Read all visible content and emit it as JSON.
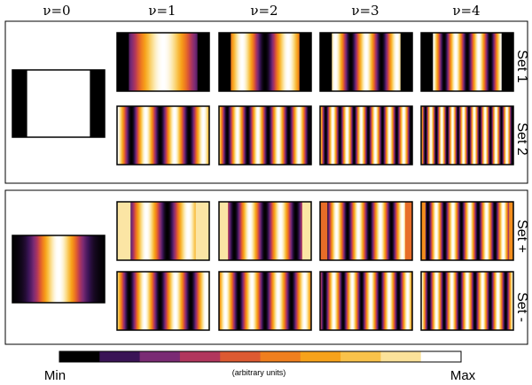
{
  "columns": [
    "ν=0",
    "ν=1",
    "ν=2",
    "ν=3",
    "ν=4"
  ],
  "panels": [
    {
      "rows": [
        "Set 1",
        "Set 2"
      ]
    },
    {
      "rows": [
        "Set +",
        "Set -"
      ]
    }
  ],
  "colorbar": {
    "min_label": "Min",
    "max_label": "Max",
    "unit_label": "(arbitrary units)",
    "colors": [
      "#000000",
      "#3a1456",
      "#7a2b74",
      "#b1365d",
      "#dd5a32",
      "#f07f1e",
      "#f7a21a",
      "#f9c24a",
      "#fbe29a",
      "#ffffff"
    ]
  },
  "tiles": [
    {
      "panel": 0,
      "row": 0,
      "col": 0,
      "kind": "binary",
      "mask": 0.16
    },
    {
      "panel": 0,
      "row": 0,
      "col": 1,
      "kind": "wave",
      "cycles": 1.0,
      "phase": 0.5,
      "mask": 0.13
    },
    {
      "panel": 0,
      "row": 0,
      "col": 2,
      "kind": "wave",
      "cycles": 2.0,
      "phase": 0.5,
      "mask": 0.13
    },
    {
      "panel": 0,
      "row": 0,
      "col": 3,
      "kind": "wave",
      "cycles": 3.0,
      "phase": 0.5,
      "mask": 0.13
    },
    {
      "panel": 0,
      "row": 0,
      "col": 4,
      "kind": "wave",
      "cycles": 4.0,
      "phase": 0.5,
      "mask": 0.13
    },
    {
      "panel": 0,
      "row": 1,
      "col": 1,
      "kind": "wave",
      "cycles": 3.2,
      "phase": 0.0,
      "mask": 0
    },
    {
      "panel": 0,
      "row": 1,
      "col": 2,
      "kind": "wave",
      "cycles": 4.5,
      "phase": 0.1,
      "mask": 0
    },
    {
      "panel": 0,
      "row": 1,
      "col": 3,
      "kind": "wave",
      "cycles": 6.5,
      "phase": 0.1,
      "mask": 0
    },
    {
      "panel": 0,
      "row": 1,
      "col": 4,
      "kind": "wave",
      "cycles": 8.5,
      "phase": 0.1,
      "mask": 0
    },
    {
      "panel": 1,
      "row": 0,
      "col": 0,
      "kind": "gauss",
      "width": 0.22
    },
    {
      "panel": 1,
      "row": 0,
      "col": 1,
      "kind": "wave",
      "cycles": 2.2,
      "phase": 0.3,
      "mask": 0.15,
      "maskval": 0.9
    },
    {
      "panel": 1,
      "row": 0,
      "col": 2,
      "kind": "wave",
      "cycles": 3.0,
      "phase": 0.0,
      "mask": 0.1,
      "maskval": 0.9
    },
    {
      "panel": 1,
      "row": 0,
      "col": 3,
      "kind": "wave",
      "cycles": 4.2,
      "phase": 0.25,
      "mask": 0.08,
      "maskval": 0.5
    },
    {
      "panel": 1,
      "row": 0,
      "col": 4,
      "kind": "wave",
      "cycles": 5.5,
      "phase": 0.1,
      "mask": 0.05,
      "maskval": 0.6
    },
    {
      "panel": 1,
      "row": 1,
      "col": 1,
      "kind": "wave",
      "cycles": 3.0,
      "phase": 0.1,
      "mask": 0
    },
    {
      "panel": 1,
      "row": 1,
      "col": 2,
      "kind": "wave",
      "cycles": 3.5,
      "phase": 0.75,
      "mask": 0
    },
    {
      "panel": 1,
      "row": 1,
      "col": 3,
      "kind": "wave",
      "cycles": 5.0,
      "phase": 0.25,
      "mask": 0
    },
    {
      "panel": 1,
      "row": 1,
      "col": 4,
      "kind": "wave",
      "cycles": 6.0,
      "phase": 0.0,
      "mask": 0
    }
  ]
}
